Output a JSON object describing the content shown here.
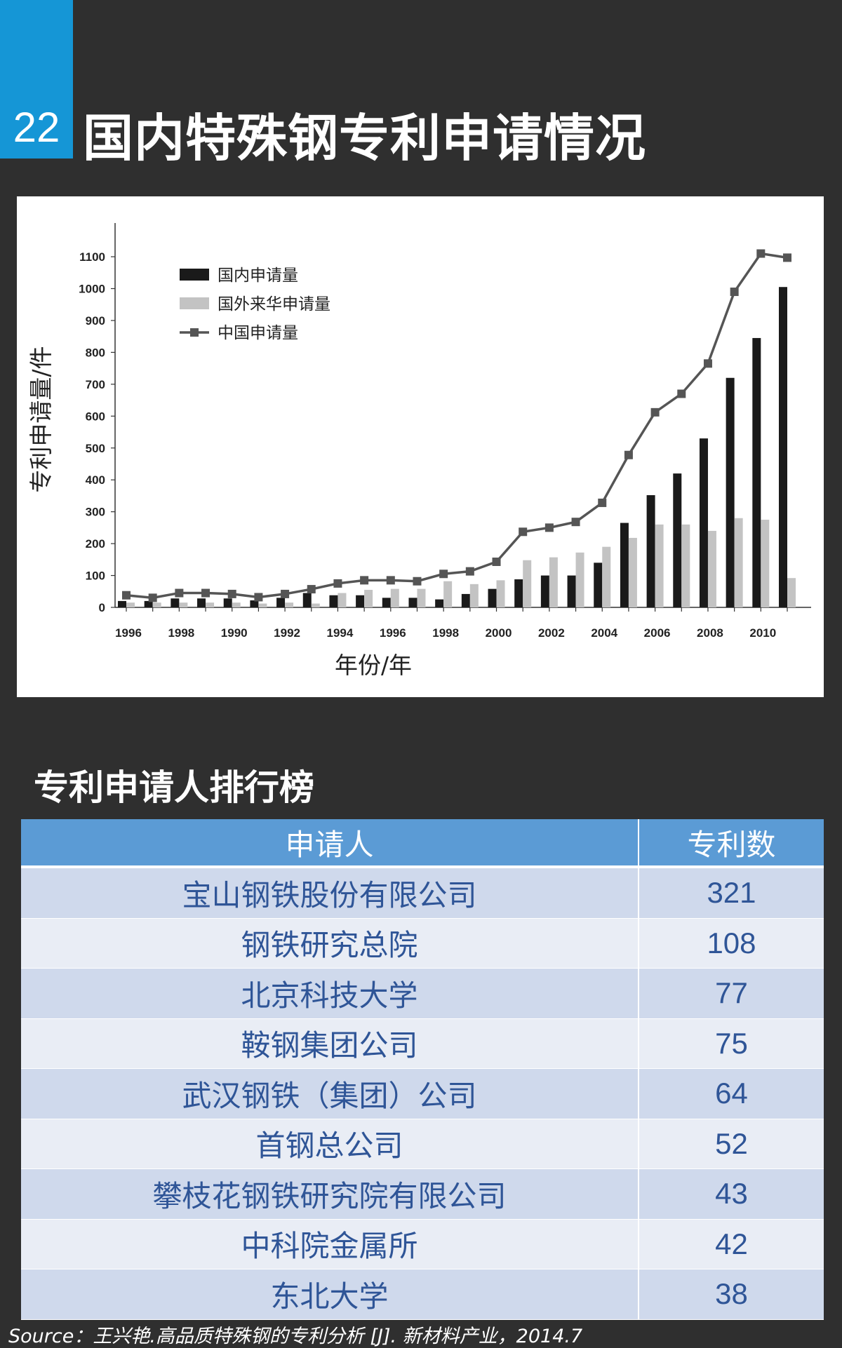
{
  "slide": {
    "number": "22",
    "title": "国内特殊钢专利申请情况",
    "section_title": "专利申请人排行榜",
    "source": "Source：王兴艳.高品质特殊钢的专利分析 [J]. 新材料产业，2014.7"
  },
  "chart_data": {
    "type": "bar",
    "xlabel": "年份/年",
    "ylabel": "专利申请量/件",
    "ylim": [
      0,
      1150
    ],
    "yticks": [
      0,
      100,
      200,
      300,
      400,
      500,
      600,
      700,
      800,
      900,
      1000,
      1100
    ],
    "x_tick_labels": [
      "1996",
      "1998",
      "1990",
      "1992",
      "1994",
      "1996",
      "1998",
      "2000",
      "2002",
      "2004",
      "2006",
      "2008",
      "2010"
    ],
    "grid": false,
    "legend_position": "top-left",
    "series": [
      {
        "name": "国内申请量",
        "type": "bar",
        "color": "#1a1a1a",
        "values": [
          20,
          20,
          28,
          28,
          28,
          22,
          30,
          45,
          38,
          38,
          30,
          30,
          25,
          42,
          58,
          88,
          100,
          100,
          140,
          265,
          352,
          420,
          530,
          720,
          845,
          1005
        ]
      },
      {
        "name": "国外来华申请量",
        "type": "bar",
        "color": "#c3c3c3",
        "values": [
          15,
          15,
          15,
          15,
          15,
          12,
          15,
          12,
          45,
          55,
          58,
          58,
          82,
          73,
          85,
          148,
          157,
          172,
          190,
          218,
          260,
          260,
          240,
          280,
          275,
          92
        ]
      },
      {
        "name": "中国申请量",
        "type": "line",
        "color": "#555555",
        "values": [
          38,
          30,
          45,
          45,
          42,
          32,
          42,
          57,
          75,
          85,
          85,
          82,
          105,
          113,
          143,
          237,
          250,
          268,
          328,
          478,
          612,
          670,
          765,
          990,
          1110,
          1097
        ]
      }
    ]
  },
  "table": {
    "headers": [
      "申请人",
      "专利数"
    ],
    "rows": [
      [
        "宝山钢铁股份有限公司",
        "321"
      ],
      [
        "钢铁研究总院",
        "108"
      ],
      [
        "北京科技大学",
        "77"
      ],
      [
        "鞍钢集团公司",
        "75"
      ],
      [
        "武汉钢铁（集团）公司",
        "64"
      ],
      [
        "首钢总公司",
        "52"
      ],
      [
        "攀枝花钢铁研究院有限公司",
        "43"
      ],
      [
        "中科院金属所",
        "42"
      ],
      [
        "东北大学",
        "38"
      ]
    ]
  }
}
